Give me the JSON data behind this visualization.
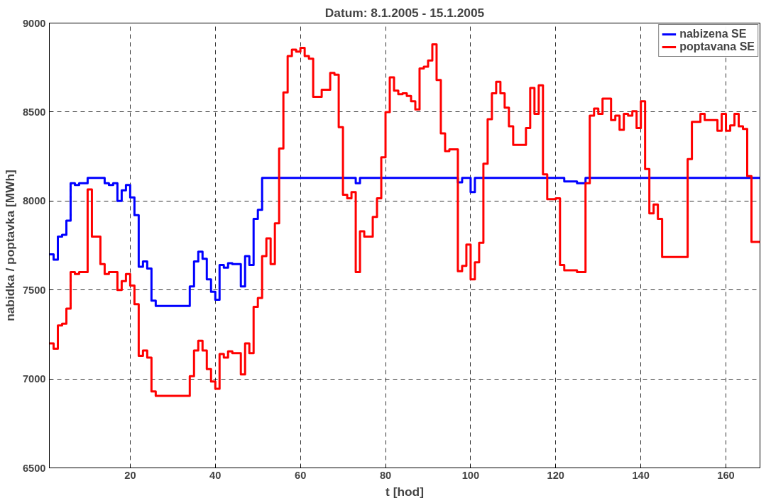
{
  "chart_data": {
    "type": "step",
    "title": "Datum: 8.1.2005 - 15.1.2005",
    "xlabel": "t [hod]",
    "ylabel": "nabidka / poptavka [MWh]",
    "xlim": [
      1,
      168
    ],
    "xticks": [
      20,
      40,
      60,
      80,
      100,
      120,
      140,
      160
    ],
    "ylim": [
      6500,
      9000
    ],
    "yticks": [
      6500,
      7000,
      7500,
      8000,
      8500,
      9000
    ],
    "grid": true,
    "legend": "top right",
    "line_style": "solid",
    "series": [
      {
        "name": "nabizena SE",
        "color": "#0000ff",
        "x": [
          1,
          2,
          3,
          4,
          5,
          6,
          7,
          8,
          10,
          14,
          15,
          16,
          17,
          18,
          19,
          20,
          21,
          22,
          23,
          24,
          25,
          26,
          34,
          35,
          36,
          37,
          38,
          39,
          40,
          41,
          42,
          43,
          44,
          46,
          47,
          48,
          49,
          50,
          51,
          73,
          74,
          97,
          98,
          100,
          101,
          122,
          125,
          127,
          168
        ],
        "values": [
          7700,
          7670,
          7800,
          7810,
          7890,
          8100,
          8090,
          8100,
          8130,
          8100,
          8090,
          8100,
          8000,
          8060,
          8090,
          8020,
          7920,
          7630,
          7660,
          7620,
          7440,
          7410,
          7520,
          7660,
          7715,
          7675,
          7560,
          7490,
          7445,
          7640,
          7625,
          7650,
          7645,
          7520,
          7690,
          7640,
          7900,
          7950,
          8130,
          8100,
          8130,
          8105,
          8130,
          8050,
          8130,
          8110,
          8100,
          8130,
          8130
        ]
      },
      {
        "name": "poptavana SE",
        "color": "#ff0000",
        "x": [
          1,
          2,
          3,
          4,
          5,
          6,
          7,
          8,
          10,
          11,
          13,
          14,
          15,
          17,
          18,
          19,
          20,
          21,
          22,
          23,
          24,
          25,
          26,
          34,
          35,
          36,
          37,
          38,
          39,
          40,
          41,
          42,
          43,
          44,
          46,
          47,
          48,
          49,
          50,
          51,
          52,
          53,
          54,
          55,
          56,
          57,
          58,
          59,
          60,
          61,
          62,
          63,
          65,
          67,
          68,
          69,
          70,
          71,
          72,
          73,
          74,
          75,
          77,
          78,
          79,
          80,
          81,
          82,
          83,
          84,
          85,
          86,
          87,
          88,
          89,
          90,
          91,
          92,
          93,
          94,
          95,
          97,
          98,
          99,
          100,
          101,
          102,
          103,
          104,
          105,
          106,
          107,
          108,
          109,
          110,
          113,
          114,
          115,
          116,
          117,
          118,
          120,
          121,
          122,
          125,
          127,
          128,
          129,
          130,
          131,
          133,
          134,
          135,
          136,
          137,
          138,
          139,
          140,
          141,
          142,
          143,
          144,
          145,
          151,
          152,
          154,
          155,
          158,
          159,
          160,
          161,
          162,
          163,
          164,
          165,
          166,
          168
        ],
        "values": [
          7200,
          7170,
          7300,
          7310,
          7395,
          7600,
          7590,
          7600,
          8065,
          7800,
          7645,
          7590,
          7600,
          7500,
          7550,
          7590,
          7525,
          7420,
          7130,
          7160,
          7120,
          6930,
          6905,
          7015,
          7160,
          7215,
          7160,
          7055,
          6985,
          6945,
          7140,
          7120,
          7155,
          7145,
          7025,
          7200,
          7145,
          7405,
          7455,
          7690,
          7790,
          7645,
          7875,
          8295,
          8610,
          8815,
          8850,
          8840,
          8860,
          8815,
          8800,
          8585,
          8625,
          8720,
          8710,
          8415,
          8035,
          8015,
          8050,
          7600,
          7830,
          7800,
          7910,
          8015,
          8245,
          8500,
          8695,
          8620,
          8600,
          8605,
          8590,
          8560,
          8515,
          8745,
          8755,
          8790,
          8880,
          8680,
          8380,
          8280,
          8290,
          7605,
          7635,
          7755,
          7560,
          7655,
          7765,
          8210,
          8460,
          8605,
          8670,
          8605,
          8525,
          8420,
          8315,
          8410,
          8635,
          8490,
          8650,
          8150,
          8010,
          8015,
          7640,
          7610,
          7600,
          8100,
          8480,
          8520,
          8490,
          8575,
          8455,
          8480,
          8400,
          8490,
          8480,
          8505,
          8410,
          8560,
          8180,
          7930,
          7980,
          7900,
          7685,
          8235,
          8445,
          8490,
          8455,
          8395,
          8490,
          8395,
          8425,
          8490,
          8420,
          8405,
          8140,
          7770,
          7770
        ]
      }
    ]
  }
}
